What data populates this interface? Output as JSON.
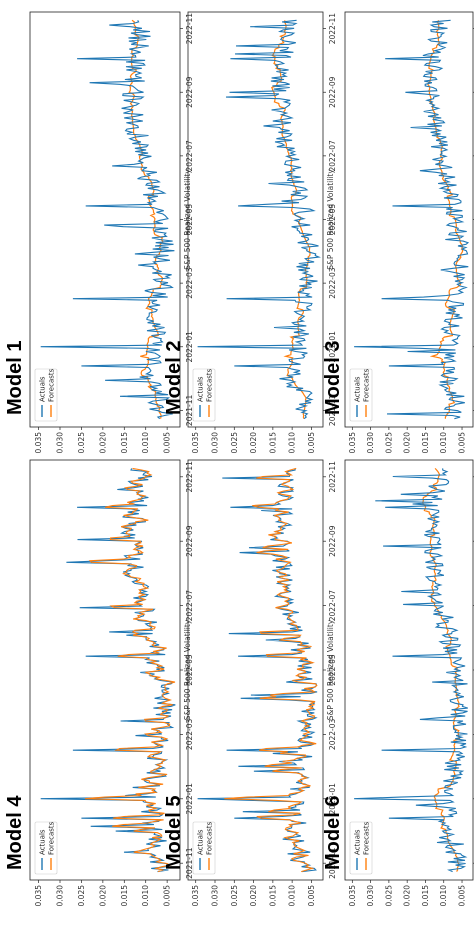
{
  "panels": [
    {
      "title": "Model 1",
      "series_mode": "actual_over"
    },
    {
      "title": "Model 2",
      "series_mode": "actual_over"
    },
    {
      "title": "Model 3",
      "series_mode": "actual_over"
    },
    {
      "title": "Model 4",
      "series_mode": "forecast_over"
    },
    {
      "title": "Model 5",
      "series_mode": "forecast_over"
    },
    {
      "title": "Model 6",
      "series_mode": "actual_over"
    }
  ],
  "colors": {
    "actual": "#1f77b4",
    "forecast": "#ff7f0e"
  },
  "chart_data": [
    {
      "type": "line",
      "title": "",
      "xlabel": "",
      "ylabel": "S&P 500 Realized Volatility",
      "x_ticks": [
        "2021-11",
        "2022-01",
        "2022-03",
        "2022-05",
        "2022-07",
        "2022-09",
        "2022-11"
      ],
      "y_ticks": [
        "0.005",
        "0.010",
        "0.015",
        "0.020",
        "0.025",
        "0.030",
        "0.035"
      ],
      "ylim": [
        0.002,
        0.037
      ],
      "legend": [
        "Actuals",
        "Forecasts"
      ],
      "legend_position": "top-left",
      "series": [
        {
          "name": "Actuals"
        },
        {
          "name": "Forecasts"
        }
      ]
    },
    {
      "type": "line",
      "title": "",
      "xlabel": "",
      "ylabel": "S&P 500 Realized Volatility",
      "x_ticks": [
        "2021-11",
        "2022-01",
        "2022-03",
        "2022-05",
        "2022-07",
        "2022-09",
        "2022-11"
      ],
      "y_ticks": [
        "0.005",
        "0.010",
        "0.015",
        "0.020",
        "0.025",
        "0.030",
        "0.035"
      ],
      "ylim": [
        0.002,
        0.037
      ],
      "legend": [
        "Actuals",
        "Forecasts"
      ],
      "legend_position": "top-left",
      "series": [
        {
          "name": "Actuals"
        },
        {
          "name": "Forecasts"
        }
      ]
    },
    {
      "type": "line",
      "title": "",
      "xlabel": "",
      "ylabel": "S&P 500 Realized Volatility",
      "x_ticks": [
        "2021-11",
        "2022-01",
        "2022-03",
        "2022-05",
        "2022-07",
        "2022-09",
        "2022-11"
      ],
      "y_ticks": [
        "0.005",
        "0.010",
        "0.015",
        "0.020",
        "0.025",
        "0.030",
        "0.035"
      ],
      "ylim": [
        0.002,
        0.037
      ],
      "legend": [
        "Actuals",
        "Forecasts"
      ],
      "legend_position": "top-left",
      "series": [
        {
          "name": "Actuals"
        },
        {
          "name": "Forecasts"
        }
      ]
    },
    {
      "type": "line",
      "title": "",
      "xlabel": "",
      "ylabel": "S&P 500 Realized Volatility",
      "x_ticks": [
        "2021-11",
        "2022-01",
        "2022-03",
        "2022-05",
        "2022-07",
        "2022-09",
        "2022-11"
      ],
      "y_ticks": [
        "0.005",
        "0.010",
        "0.015",
        "0.020",
        "0.025",
        "0.030",
        "0.035"
      ],
      "ylim": [
        0.002,
        0.037
      ],
      "legend": [
        "Actuals",
        "Forecasts"
      ],
      "legend_position": "top-left",
      "series": [
        {
          "name": "Actuals"
        },
        {
          "name": "Forecasts"
        }
      ]
    },
    {
      "type": "line",
      "title": "",
      "xlabel": "",
      "ylabel": "S&P 500 Realized Volatility",
      "x_ticks": [
        "2021-11",
        "2022-01",
        "2022-03",
        "2022-05",
        "2022-07",
        "2022-09",
        "2022-11"
      ],
      "y_ticks": [
        "0.005",
        "0.010",
        "0.015",
        "0.020",
        "0.025",
        "0.030",
        "0.035"
      ],
      "ylim": [
        0.002,
        0.037
      ],
      "legend": [
        "Actuals",
        "Forecasts"
      ],
      "legend_position": "top-left",
      "series": [
        {
          "name": "Actuals"
        },
        {
          "name": "Forecasts"
        }
      ]
    },
    {
      "type": "line",
      "title": "",
      "xlabel": "",
      "ylabel": "S&P 500 Realized Volatility",
      "x_ticks": [
        "2021-11",
        "2022-01",
        "2022-03",
        "2022-05",
        "2022-07",
        "2022-09",
        "2022-11"
      ],
      "y_ticks": [
        "0.005",
        "0.010",
        "0.015",
        "0.020",
        "0.025",
        "0.030",
        "0.035"
      ],
      "ylim": [
        0.002,
        0.037
      ],
      "legend": [
        "Actuals",
        "Forecasts"
      ],
      "legend_position": "top-left",
      "series": [
        {
          "name": "Actuals"
        },
        {
          "name": "Forecasts"
        }
      ]
    }
  ]
}
